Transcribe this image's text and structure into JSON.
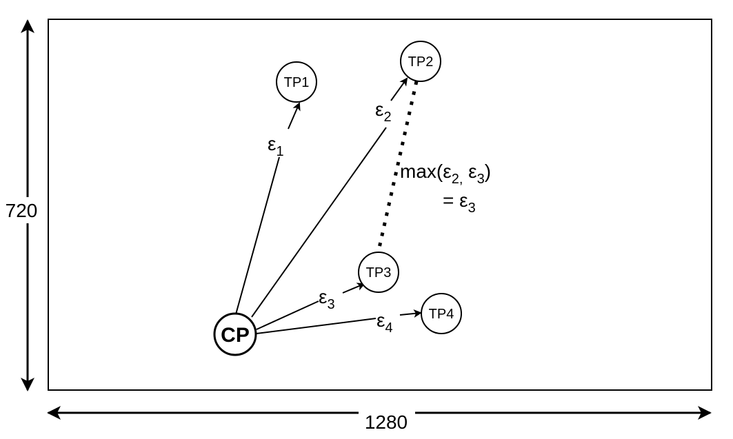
{
  "canvas": {
    "width_label": "1280",
    "height_label": "720"
  },
  "nodes": {
    "cp": "CP",
    "tp1": "TP1",
    "tp2": "TP2",
    "tp3": "TP3",
    "tp4": "TP4"
  },
  "edges": {
    "e1": {
      "symbol": "ε",
      "sub": "1"
    },
    "e2": {
      "symbol": "ε",
      "sub": "2"
    },
    "e3": {
      "symbol": "ε",
      "sub": "3"
    },
    "e4": {
      "symbol": "ε",
      "sub": "4"
    }
  },
  "annotation": {
    "line1_prefix": "max(ε",
    "line1_sub_a": "2,",
    "line1_mid": " ε",
    "line1_sub_b": "3",
    "line1_suffix": ")",
    "line2_prefix": "= ε",
    "line2_sub": "3"
  }
}
